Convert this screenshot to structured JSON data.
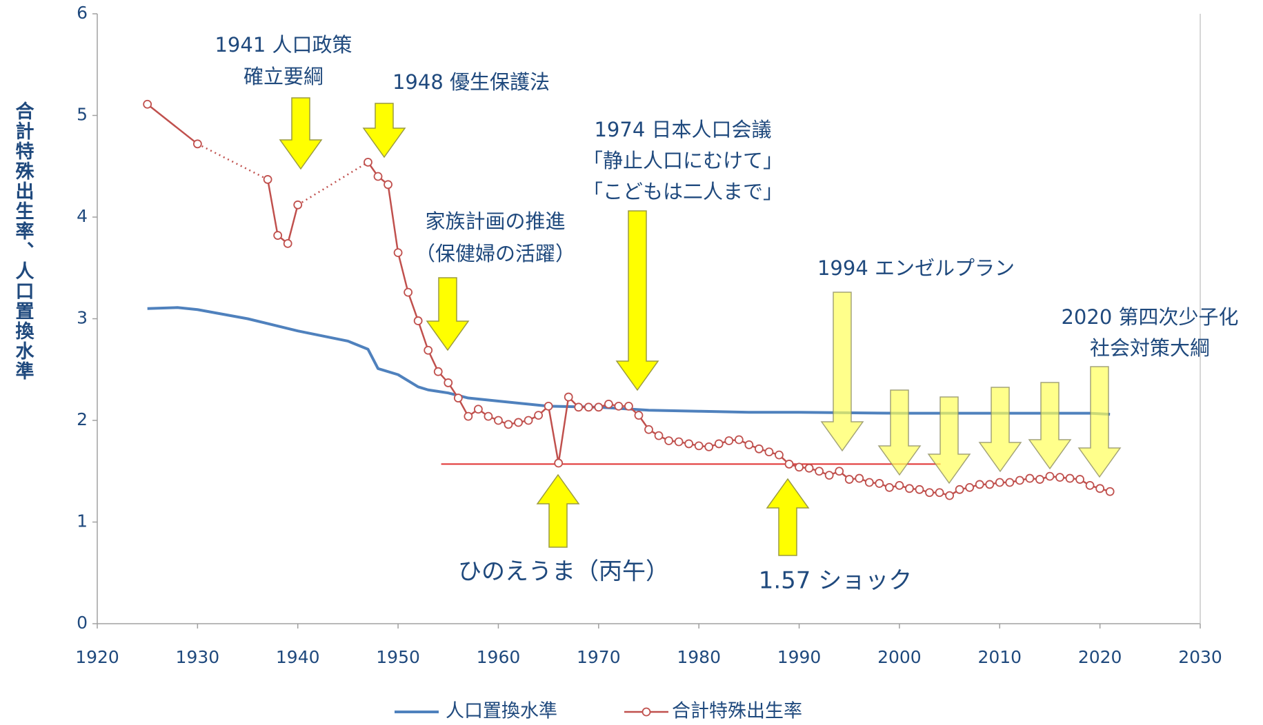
{
  "chart_data": {
    "type": "line",
    "ylabel": "合計特殊出生率、人口置換水準",
    "xlim": [
      1920,
      2030
    ],
    "xticks": [
      1920,
      1930,
      1940,
      1950,
      1960,
      1970,
      1980,
      1990,
      2000,
      2010,
      2020,
      2030
    ],
    "ylim": [
      0,
      6
    ],
    "yticks": [
      0,
      1,
      2,
      3,
      4,
      5,
      6
    ],
    "grid": false,
    "legend": "bottom",
    "series": [
      {
        "name": "人口置換水準",
        "color": "#4f81bd",
        "markers": false,
        "x": [
          1925,
          1928,
          1930,
          1935,
          1940,
          1945,
          1947,
          1948,
          1950,
          1952,
          1953,
          1955,
          1957,
          1960,
          1965,
          1970,
          1975,
          1980,
          1985,
          1990,
          2000,
          2010,
          2015,
          2019,
          2021
        ],
        "values": [
          3.1,
          3.11,
          3.09,
          3.0,
          2.88,
          2.78,
          2.7,
          2.51,
          2.45,
          2.33,
          2.3,
          2.27,
          2.22,
          2.19,
          2.14,
          2.13,
          2.1,
          2.09,
          2.08,
          2.08,
          2.07,
          2.07,
          2.07,
          2.07,
          2.06
        ]
      },
      {
        "name": "合計特殊出生率",
        "color": "#c0504d",
        "markers": true,
        "x": [
          1925,
          1930,
          1937,
          1938,
          1939,
          1940,
          1947,
          1948,
          1949,
          1950,
          1951,
          1952,
          1953,
          1954,
          1955,
          1956,
          1957,
          1958,
          1959,
          1960,
          1961,
          1962,
          1963,
          1964,
          1965,
          1966,
          1967,
          1968,
          1969,
          1970,
          1971,
          1972,
          1973,
          1974,
          1975,
          1976,
          1977,
          1978,
          1979,
          1980,
          1981,
          1982,
          1983,
          1984,
          1985,
          1986,
          1987,
          1988,
          1989,
          1990,
          1991,
          1992,
          1993,
          1994,
          1995,
          1996,
          1997,
          1998,
          1999,
          2000,
          2001,
          2002,
          2003,
          2004,
          2005,
          2006,
          2007,
          2008,
          2009,
          2010,
          2011,
          2012,
          2013,
          2014,
          2015,
          2016,
          2017,
          2018,
          2019,
          2020,
          2021
        ],
        "values": [
          5.11,
          4.72,
          4.37,
          3.82,
          3.74,
          4.12,
          4.54,
          4.4,
          4.32,
          3.65,
          3.26,
          2.98,
          2.69,
          2.48,
          2.37,
          2.22,
          2.04,
          2.11,
          2.04,
          2.0,
          1.96,
          1.98,
          2.0,
          2.05,
          2.14,
          1.58,
          2.23,
          2.13,
          2.13,
          2.13,
          2.16,
          2.14,
          2.14,
          2.05,
          1.91,
          1.85,
          1.8,
          1.79,
          1.77,
          1.75,
          1.74,
          1.77,
          1.8,
          1.81,
          1.76,
          1.72,
          1.69,
          1.66,
          1.57,
          1.54,
          1.53,
          1.5,
          1.46,
          1.5,
          1.42,
          1.43,
          1.39,
          1.38,
          1.34,
          1.36,
          1.33,
          1.32,
          1.29,
          1.29,
          1.26,
          1.32,
          1.34,
          1.37,
          1.37,
          1.39,
          1.39,
          1.41,
          1.43,
          1.42,
          1.45,
          1.44,
          1.43,
          1.42,
          1.36,
          1.33,
          1.3
        ]
      }
    ],
    "reference_line": {
      "y": 1.57,
      "x": [
        1954.3,
        2004.1
      ],
      "color": "#e03030"
    },
    "annotations": [
      {
        "lines": [
          "1941 人口政策",
          "確立要綱"
        ]
      },
      {
        "lines": [
          "1948 優生保護法"
        ]
      },
      {
        "lines": [
          "1974 日本人口会議",
          "「静止人口にむけて」",
          "「こどもは二人まで」"
        ]
      },
      {
        "lines": [
          "家族計画の推進",
          "（保健婦の活躍）"
        ]
      },
      {
        "lines": [
          "1994 エンゼルプラン"
        ]
      },
      {
        "lines": [
          "2020 第四次少子化",
          "社会対策大綱"
        ]
      },
      {
        "lines": [
          "ひのえうま（丙午）"
        ]
      },
      {
        "lines": [
          "1.57 ショック"
        ]
      }
    ]
  }
}
